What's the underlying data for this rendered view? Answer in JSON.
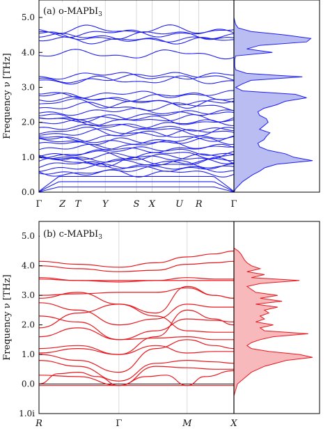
{
  "chart_data": [
    {
      "type": "line",
      "panel_label": "(a) o-MAPbI",
      "panel_label_sub": "3",
      "ylabel": "Frequency ν [THz]",
      "ylim": [
        0.0,
        5.5
      ],
      "y_ticks": [
        "0.0",
        "1.0",
        "2.0",
        "3.0",
        "4.0",
        "5.0"
      ],
      "y_tick_values": [
        0.0,
        1.0,
        2.0,
        3.0,
        4.0,
        5.0
      ],
      "k_points": [
        "Γ",
        "Z",
        "T",
        "Y",
        "S",
        "X",
        "U",
        "R",
        "Γ"
      ],
      "k_positions": [
        0,
        0.12,
        0.2,
        0.34,
        0.5,
        0.58,
        0.72,
        0.82,
        1.0
      ],
      "color": "#1d1df2",
      "band_levels": [
        0.15,
        0.3,
        0.45,
        0.55,
        0.62,
        0.7,
        0.78,
        0.85,
        0.9,
        0.95,
        1.02,
        1.08,
        1.15,
        1.25,
        1.35,
        1.45,
        1.5,
        1.6,
        1.7,
        1.75,
        1.85,
        1.95,
        2.05,
        2.1,
        2.2,
        2.3,
        2.45,
        2.55,
        2.62,
        2.72,
        2.8,
        3.2,
        3.28,
        3.33,
        3.95,
        4.35,
        4.42,
        4.48,
        4.55,
        4.65
      ],
      "dos": {
        "freq": [
          0.0,
          0.1,
          0.2,
          0.3,
          0.4,
          0.5,
          0.6,
          0.7,
          0.8,
          0.9,
          1.0,
          1.1,
          1.2,
          1.3,
          1.4,
          1.5,
          1.6,
          1.7,
          1.8,
          1.9,
          2.0,
          2.1,
          2.2,
          2.3,
          2.4,
          2.5,
          2.6,
          2.7,
          2.8,
          2.9,
          3.0,
          3.1,
          3.2,
          3.3,
          3.4,
          3.5,
          3.6,
          3.7,
          3.8,
          3.9,
          4.0,
          4.1,
          4.2,
          4.3,
          4.4,
          4.5,
          4.6,
          4.7,
          4.8,
          4.9,
          5.0
        ],
        "value": [
          0.0,
          0.02,
          0.06,
          0.1,
          0.16,
          0.22,
          0.3,
          0.36,
          0.5,
          0.92,
          0.7,
          0.6,
          0.4,
          0.3,
          0.28,
          0.35,
          0.38,
          0.42,
          0.3,
          0.35,
          0.4,
          0.38,
          0.3,
          0.28,
          0.35,
          0.5,
          0.6,
          0.85,
          0.72,
          0.1,
          0.02,
          0.1,
          0.2,
          0.8,
          0.15,
          0.02,
          0.01,
          0.01,
          0.01,
          0.02,
          0.45,
          0.15,
          0.3,
          0.85,
          0.9,
          0.6,
          0.2,
          0.05,
          0.02,
          0.01,
          0.0
        ]
      }
    },
    {
      "type": "line",
      "panel_label": "(b) c-MAPbI",
      "panel_label_sub": "3",
      "ylabel": "Frequency ν [THz]",
      "ylim": [
        -1.0,
        5.5
      ],
      "y_ticks": [
        "5.0",
        "4.0",
        "3.0",
        "2.0",
        "1.0",
        "0.0",
        "1.0i"
      ],
      "y_tick_values": [
        5.0,
        4.0,
        3.0,
        2.0,
        1.0,
        0.0,
        -1.0
      ],
      "k_points": [
        "R",
        "Γ",
        "M",
        "X"
      ],
      "k_positions": [
        0,
        0.41,
        0.76,
        1.0
      ],
      "color": "#e8161c",
      "bands": [
        {
          "k": [
            0,
            0.41,
            0.76,
            1.0
          ],
          "v": [
            -0.05,
            -0.05,
            -0.05,
            -0.05
          ]
        },
        {
          "k": [
            0,
            0.1,
            0.2,
            0.3,
            0.41,
            0.55,
            0.65,
            0.76,
            0.85,
            1.0
          ],
          "v": [
            0.0,
            0.35,
            0.4,
            0.25,
            -0.05,
            0.25,
            0.3,
            -0.05,
            0.25,
            0.45
          ]
        },
        {
          "k": [
            0,
            0.2,
            0.41,
            0.6,
            0.76,
            0.9,
            1.0
          ],
          "v": [
            0.3,
            0.25,
            -0.05,
            0.6,
            0.55,
            0.5,
            0.5
          ]
        },
        {
          "k": [
            0,
            0.2,
            0.41,
            0.6,
            0.76,
            0.9,
            1.0
          ],
          "v": [
            0.8,
            0.6,
            0.1,
            0.7,
            0.8,
            0.75,
            0.7
          ]
        },
        {
          "k": [
            0,
            0.2,
            0.41,
            0.6,
            0.76,
            0.9,
            1.0
          ],
          "v": [
            1.0,
            0.8,
            0.4,
            1.2,
            1.5,
            1.3,
            1.2
          ]
        },
        {
          "k": [
            0,
            0.2,
            0.41,
            0.6,
            0.76,
            0.9,
            1.0
          ],
          "v": [
            1.05,
            1.2,
            1.0,
            1.6,
            2.5,
            2.2,
            2.0
          ]
        },
        {
          "k": [
            0,
            0.2,
            0.41,
            0.6,
            0.76,
            0.9,
            1.0
          ],
          "v": [
            1.2,
            1.3,
            1.0,
            1.3,
            1.05,
            1.1,
            1.1
          ]
        },
        {
          "k": [
            0,
            0.2,
            0.41,
            0.6,
            0.76,
            0.9,
            1.0
          ],
          "v": [
            1.6,
            1.9,
            1.5,
            1.55,
            1.6,
            1.5,
            1.5
          ]
        },
        {
          "k": [
            0,
            0.2,
            0.41,
            0.6,
            0.76,
            0.9,
            1.0
          ],
          "v": [
            1.9,
            2.4,
            2.7,
            2.3,
            1.8,
            1.75,
            1.75
          ]
        },
        {
          "k": [
            0,
            0.2,
            0.41,
            0.6,
            0.76,
            0.9,
            1.0
          ],
          "v": [
            2.3,
            2.1,
            1.5,
            1.8,
            2.2,
            2.15,
            2.1
          ]
        },
        {
          "k": [
            0,
            0.2,
            0.41,
            0.6,
            0.76,
            0.9,
            1.0
          ],
          "v": [
            2.75,
            2.5,
            2.0,
            2.2,
            2.7,
            2.6,
            2.6
          ]
        },
        {
          "k": [
            0,
            0.2,
            0.41,
            0.6,
            0.76,
            0.9,
            1.0
          ],
          "v": [
            2.9,
            3.1,
            2.7,
            2.4,
            3.3,
            3.0,
            2.9
          ]
        },
        {
          "k": [
            0,
            0.2,
            0.41,
            0.6,
            0.76,
            0.9,
            1.0
          ],
          "v": [
            3.0,
            3.05,
            3.1,
            3.1,
            3.25,
            3.0,
            2.9
          ]
        },
        {
          "k": [
            0,
            0.2,
            0.41,
            0.6,
            0.76,
            0.9,
            1.0
          ],
          "v": [
            3.55,
            3.5,
            3.5,
            3.5,
            3.5,
            3.5,
            3.5
          ]
        },
        {
          "k": [
            0,
            0.2,
            0.41,
            0.6,
            0.76,
            0.9,
            1.0
          ],
          "v": [
            3.6,
            3.5,
            3.45,
            3.5,
            3.6,
            3.55,
            3.55
          ]
        },
        {
          "k": [
            0,
            0.2,
            0.41,
            0.6,
            0.76,
            0.9,
            1.0
          ],
          "v": [
            4.0,
            3.9,
            3.8,
            3.85,
            4.05,
            4.1,
            4.15
          ]
        },
        {
          "k": [
            0,
            0.2,
            0.41,
            0.6,
            0.76,
            0.9,
            1.0
          ],
          "v": [
            4.15,
            4.05,
            3.95,
            4.1,
            4.3,
            4.4,
            4.5
          ]
        }
      ],
      "dos": {
        "freq": [
          -1.0,
          -0.8,
          -0.6,
          -0.4,
          -0.2,
          -0.1,
          0.0,
          0.1,
          0.2,
          0.4,
          0.6,
          0.8,
          0.9,
          1.0,
          1.1,
          1.2,
          1.3,
          1.4,
          1.5,
          1.6,
          1.7,
          1.8,
          1.9,
          2.0,
          2.1,
          2.2,
          2.3,
          2.4,
          2.5,
          2.6,
          2.7,
          2.8,
          2.9,
          3.0,
          3.1,
          3.2,
          3.3,
          3.4,
          3.5,
          3.6,
          3.7,
          3.8,
          3.9,
          4.0,
          4.1,
          4.2,
          4.3,
          4.4,
          4.5,
          4.6
        ],
        "value": [
          0.0,
          0.0,
          0.0,
          0.0,
          0.02,
          0.03,
          0.04,
          0.08,
          0.12,
          0.2,
          0.35,
          0.6,
          0.9,
          0.75,
          0.4,
          0.2,
          0.15,
          0.2,
          0.3,
          0.45,
          0.85,
          0.35,
          0.3,
          0.45,
          0.25,
          0.35,
          0.3,
          0.4,
          0.35,
          0.5,
          0.25,
          0.55,
          0.3,
          0.5,
          0.25,
          0.2,
          0.15,
          0.3,
          0.75,
          0.2,
          0.35,
          0.15,
          0.3,
          0.2,
          0.15,
          0.12,
          0.1,
          0.08,
          0.05,
          0.0
        ]
      }
    }
  ]
}
